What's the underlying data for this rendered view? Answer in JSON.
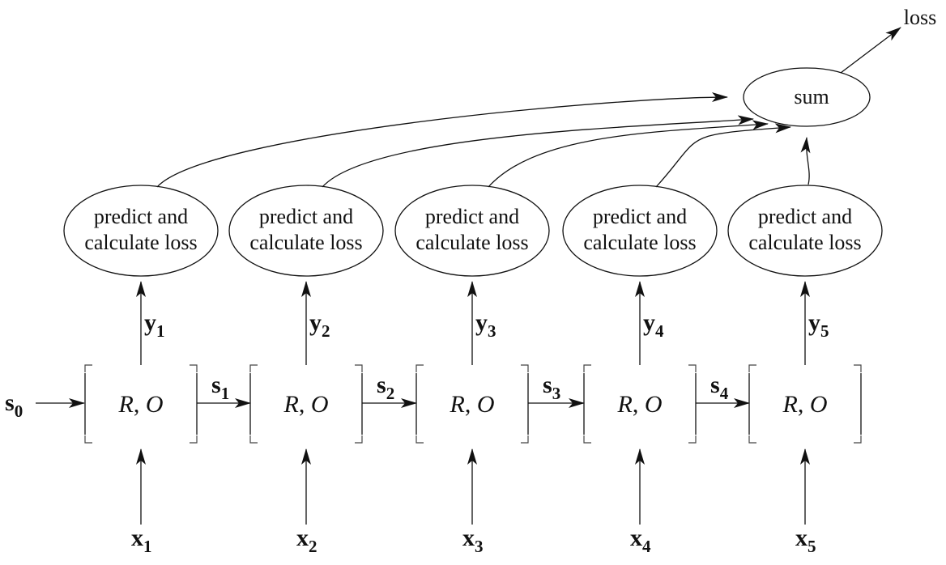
{
  "diagram": {
    "sum_label": "sum",
    "loss_label": "loss",
    "initial_state": {
      "base": "s",
      "sub": "0"
    },
    "cell_label": {
      "r": "R",
      "sep": ", ",
      "o": "O"
    },
    "predict_label": [
      "predict and",
      "calculate loss"
    ],
    "steps": [
      {
        "x": {
          "base": "x",
          "sub": "1"
        },
        "y": {
          "base": "y",
          "sub": "1"
        },
        "s": {
          "base": "s",
          "sub": "1"
        }
      },
      {
        "x": {
          "base": "x",
          "sub": "2"
        },
        "y": {
          "base": "y",
          "sub": "2"
        },
        "s": {
          "base": "s",
          "sub": "2"
        }
      },
      {
        "x": {
          "base": "x",
          "sub": "3"
        },
        "y": {
          "base": "y",
          "sub": "3"
        },
        "s": {
          "base": "s",
          "sub": "3"
        }
      },
      {
        "x": {
          "base": "x",
          "sub": "4"
        },
        "y": {
          "base": "y",
          "sub": "4"
        },
        "s": {
          "base": "s",
          "sub": "4"
        }
      },
      {
        "x": {
          "base": "x",
          "sub": "5"
        },
        "y": {
          "base": "y",
          "sub": "5"
        }
      }
    ]
  }
}
